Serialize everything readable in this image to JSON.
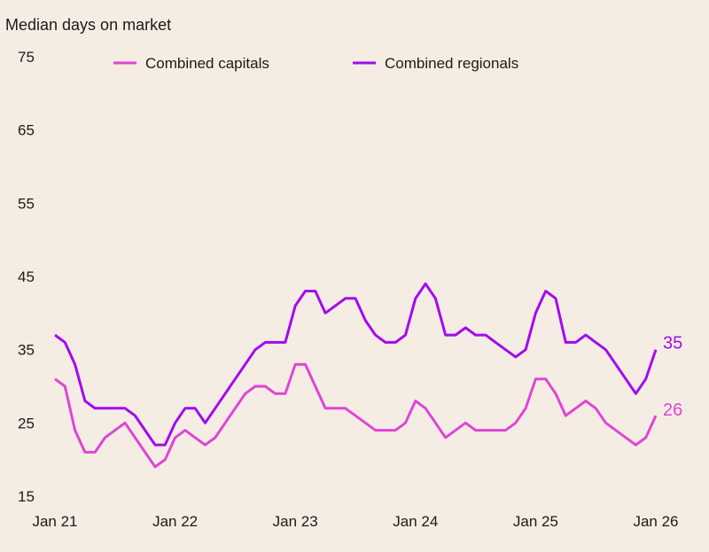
{
  "chart_data": {
    "type": "line",
    "title": "",
    "ylabel": "Median days on market",
    "xlabel": "",
    "ylim": [
      15,
      75
    ],
    "yticks": [
      15,
      25,
      35,
      45,
      55,
      65,
      75
    ],
    "xtick_labels": [
      "Jan 21",
      "Jan 22",
      "Jan 23",
      "Jan 24",
      "Jan 25",
      "Jan 26"
    ],
    "x_start": "Jan 21",
    "frequency": "monthly",
    "grid": false,
    "legend": "top",
    "series": [
      {
        "name": "Combined capitals",
        "color": "#df45d6",
        "end_label": "26",
        "values": [
          31,
          30,
          24,
          21,
          21,
          23,
          24,
          25,
          23,
          21,
          19,
          20,
          23,
          24,
          23,
          22,
          23,
          25,
          27,
          29,
          30,
          30,
          29,
          29,
          33,
          33,
          30,
          27,
          27,
          27,
          26,
          25,
          24,
          24,
          24,
          25,
          28,
          27,
          25,
          23,
          24,
          25,
          24,
          24,
          24,
          24,
          25,
          27,
          31,
          31,
          29,
          26,
          27,
          28,
          27,
          25,
          24,
          23,
          22,
          23,
          26
        ]
      },
      {
        "name": "Combined regionals",
        "color": "#a30af0",
        "end_label": "35",
        "values": [
          37,
          36,
          33,
          28,
          27,
          27,
          27,
          27,
          26,
          24,
          22,
          22,
          25,
          27,
          27,
          25,
          27,
          29,
          31,
          33,
          35,
          36,
          36,
          36,
          41,
          43,
          43,
          40,
          41,
          42,
          42,
          39,
          37,
          36,
          36,
          37,
          42,
          44,
          42,
          37,
          37,
          38,
          37,
          37,
          36,
          35,
          34,
          35,
          40,
          43,
          42,
          36,
          36,
          37,
          36,
          35,
          33,
          31,
          29,
          31,
          35
        ]
      }
    ]
  }
}
